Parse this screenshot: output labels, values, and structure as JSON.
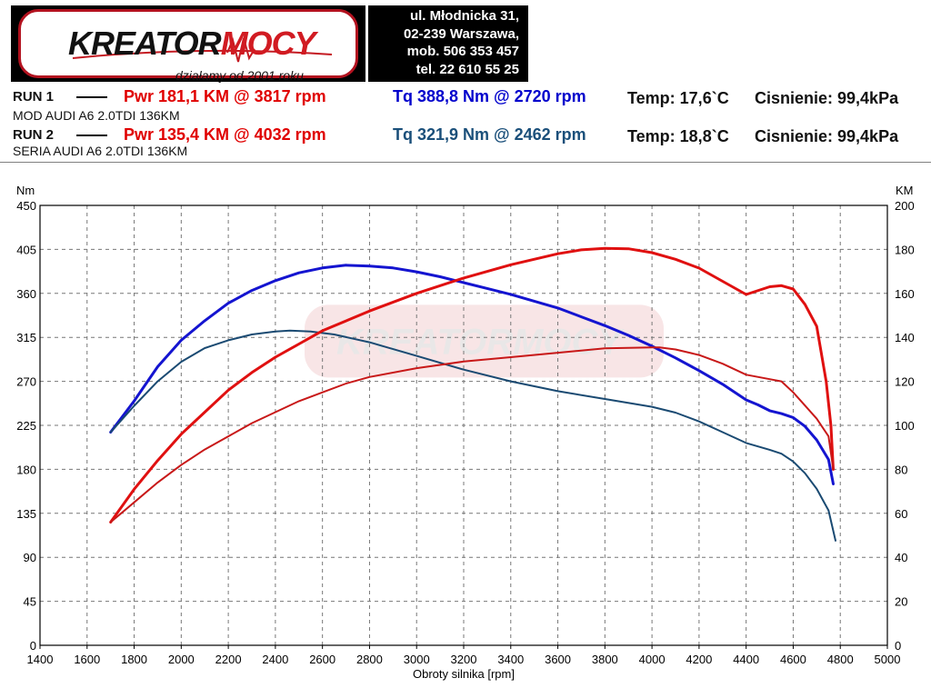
{
  "header": {
    "brand_part1": "KREATOR",
    "brand_part2": "MOCY",
    "tagline": "działamy od 2001 roku",
    "contact_lines": [
      "ul. Młodnicka 31,",
      "02-239  Warszawa,",
      "mob.  506 353 457",
      "tel.  22 610 55 25"
    ]
  },
  "runs": [
    {
      "label": "RUN 1",
      "pwr": "Pwr  181,1 KM @ 3817 rpm",
      "tq": "Tq 388,8 Nm @ 2720 rpm",
      "temp": "Temp: 17,6`C",
      "pressure": "Cisnienie: 99,4kPa",
      "desc": "MOD AUDI A6 2.0TDI  136KM"
    },
    {
      "label": "RUN 2",
      "pwr": "Pwr  135,4 KM @ 4032 rpm",
      "tq": "Tq 321,9 Nm @ 2462 rpm",
      "temp": "Temp: 18,8`C",
      "pressure": "Cisnienie: 99,4kPa",
      "desc": "SERIA AUDI A6 2.0TDI  136KM"
    }
  ],
  "colors": {
    "run1_power": "#e01010",
    "run2_power": "#c81818",
    "run1_torque": "#1414d0",
    "run2_torque": "#1a4a72",
    "grid": "#777777"
  },
  "chart_data": {
    "type": "line",
    "xlabel": "Obroty silnika [rpm]",
    "ylabel_left": "Nm",
    "ylabel_right": "KM",
    "xlim": [
      1400,
      5000
    ],
    "ylim_left": [
      0,
      450
    ],
    "ylim_right": [
      0,
      200
    ],
    "xticks": [
      1400,
      1600,
      1800,
      2000,
      2200,
      2400,
      2600,
      2800,
      3000,
      3200,
      3400,
      3600,
      3800,
      4000,
      4200,
      4400,
      4600,
      4800,
      5000
    ],
    "yticks_left": [
      0,
      45,
      90,
      135,
      180,
      225,
      270,
      315,
      360,
      405,
      450
    ],
    "yticks_right": [
      0,
      20,
      40,
      60,
      80,
      100,
      120,
      140,
      160,
      180,
      200
    ],
    "grid": true,
    "watermark": "KREATORMOCY",
    "series": [
      {
        "axis": "left",
        "color_key": "run1_torque",
        "width": 3,
        "x": [
          1700,
          1800,
          1900,
          2000,
          2100,
          2200,
          2300,
          2400,
          2500,
          2600,
          2700,
          2800,
          2900,
          3000,
          3100,
          3200,
          3300,
          3400,
          3500,
          3600,
          3700,
          3800,
          3900,
          4000,
          4100,
          4200,
          4300,
          4400,
          4450,
          4500,
          4550,
          4600,
          4650,
          4700,
          4750,
          4770
        ],
        "y": [
          218,
          250,
          285,
          312,
          332,
          350,
          363,
          373,
          381,
          386,
          388.8,
          388,
          386,
          382,
          377,
          371,
          365,
          359,
          352,
          345,
          336,
          327,
          317,
          306,
          294,
          281,
          267,
          251,
          246,
          240,
          237,
          233,
          224,
          210,
          190,
          165
        ]
      },
      {
        "axis": "left",
        "color_key": "run2_torque",
        "width": 2,
        "x": [
          1700,
          1800,
          1900,
          2000,
          2100,
          2200,
          2300,
          2400,
          2462,
          2550,
          2650,
          2800,
          2900,
          3000,
          3200,
          3400,
          3600,
          3800,
          4000,
          4100,
          4200,
          4300,
          4400,
          4500,
          4550,
          4600,
          4650,
          4700,
          4750,
          4780
        ],
        "y": [
          218,
          245,
          270,
          290,
          304,
          312,
          318,
          321,
          321.9,
          321,
          318,
          310,
          303,
          296,
          282,
          270,
          260,
          252,
          244,
          238,
          229,
          218,
          207,
          200,
          196,
          188,
          176,
          160,
          138,
          107
        ]
      },
      {
        "axis": "right",
        "color_key": "run1_power",
        "width": 3,
        "x": [
          1700,
          1800,
          1900,
          2000,
          2100,
          2200,
          2300,
          2400,
          2500,
          2600,
          2800,
          3000,
          3200,
          3400,
          3600,
          3700,
          3800,
          3900,
          4000,
          4100,
          4200,
          4300,
          4400,
          4500,
          4550,
          4600,
          4650,
          4700,
          4740,
          4760,
          4770
        ],
        "y": [
          56,
          71,
          84,
          96,
          106,
          116,
          124,
          131,
          137,
          143,
          152,
          160,
          167,
          173,
          178,
          179.8,
          180.5,
          180.3,
          178.5,
          175.5,
          171.5,
          165.5,
          159.5,
          163,
          163.5,
          162,
          155,
          145,
          120,
          100,
          80
        ]
      },
      {
        "axis": "right",
        "color_key": "run2_power",
        "width": 2,
        "x": [
          1700,
          1800,
          1900,
          2000,
          2100,
          2200,
          2300,
          2400,
          2500,
          2600,
          2700,
          2800,
          3000,
          3200,
          3400,
          3600,
          3800,
          3900,
          4000,
          4032,
          4100,
          4200,
          4300,
          4400,
          4500,
          4550,
          4600,
          4650,
          4700,
          4750,
          4770
        ],
        "y": [
          56,
          65,
          74,
          82,
          89,
          95,
          101,
          106,
          111,
          115,
          119,
          122,
          126,
          129,
          131,
          133,
          135,
          135.2,
          135.4,
          135.4,
          134.5,
          132,
          128,
          123,
          121,
          120,
          115,
          109,
          103,
          95,
          80
        ]
      }
    ]
  }
}
